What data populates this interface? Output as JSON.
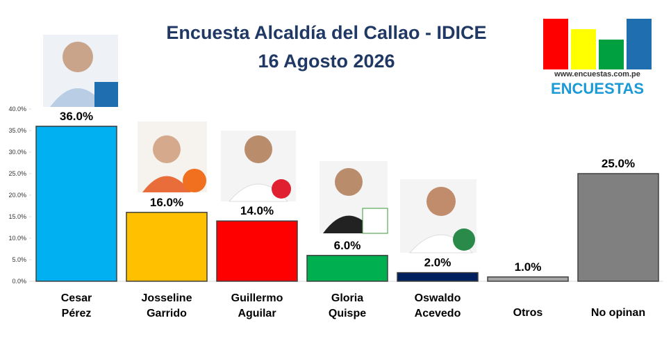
{
  "chart_data": {
    "type": "bar",
    "title": "Encuesta Alcaldía del Callao - IDICE",
    "subtitle": "16 Agosto 2026",
    "logo_url": "www.encuestas.com.pe",
    "logo_name": "ENCUESTAS",
    "categories": [
      "Cesar\nPérez",
      "Josseline\nGarrido",
      "Guillermo\nAguilar",
      "Gloria\nQuispe",
      "Oswaldo\nAcevedo",
      "Otros",
      "No opinan"
    ],
    "values": [
      36,
      16,
      14,
      6,
      2,
      1,
      25
    ],
    "value_labels": [
      "36.0%",
      "16.0%",
      "14.0%",
      "6.0%",
      "2.0%",
      "1.0%",
      "25.0%"
    ],
    "colors": [
      "#00b0f0",
      "#ffc000",
      "#ff0000",
      "#00b050",
      "#002060",
      "#a6a6a6",
      "#808080"
    ],
    "ylim": [
      0,
      40
    ],
    "yticks": [
      {
        "value": 0,
        "label": "0.0%"
      },
      {
        "value": 5,
        "label": "5.0%"
      },
      {
        "value": 10,
        "label": "10.0%"
      },
      {
        "value": 15,
        "label": "15.0%"
      },
      {
        "value": 20,
        "label": "20.0%"
      },
      {
        "value": 25,
        "label": "25.0%"
      },
      {
        "value": 30,
        "label": "30.0%"
      },
      {
        "value": 35,
        "label": "35.0%"
      },
      {
        "value": 40,
        "label": "40.0%"
      }
    ],
    "grid": false
  }
}
